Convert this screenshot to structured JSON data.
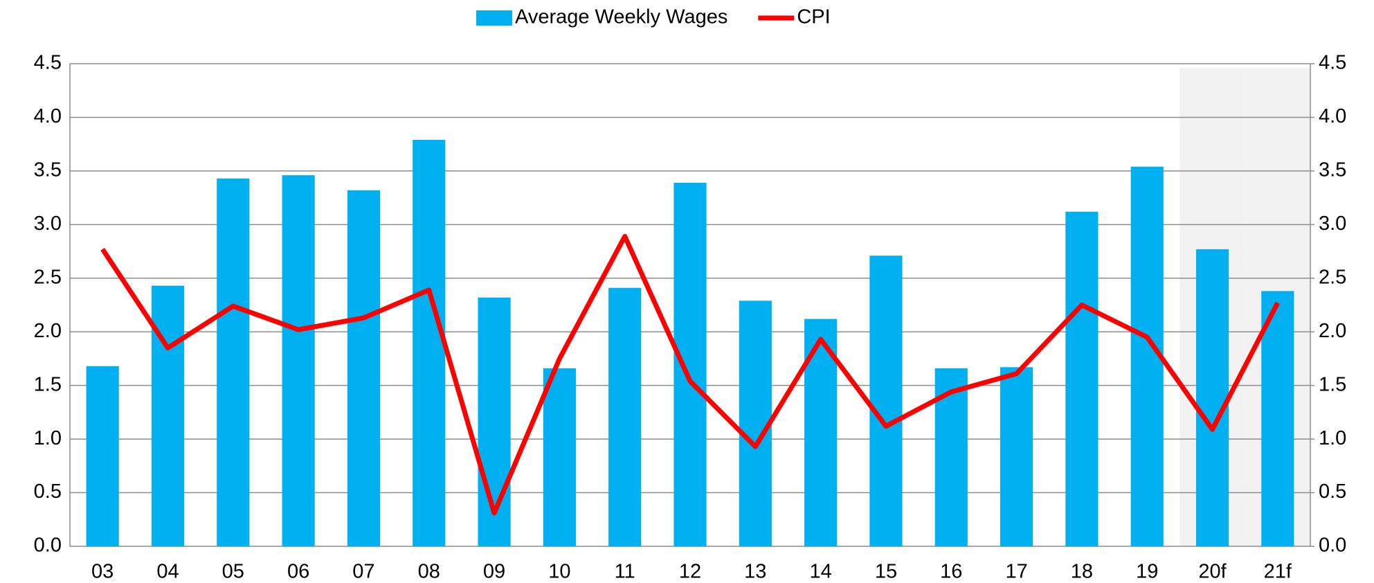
{
  "chart_data": {
    "type": "bar_line",
    "categories": [
      "03",
      "04",
      "05",
      "06",
      "07",
      "08",
      "09",
      "10",
      "11",
      "12",
      "13",
      "14",
      "15",
      "16",
      "17",
      "18",
      "19",
      "20f",
      "21f"
    ],
    "series": [
      {
        "name": "Average Weekly Wages",
        "type": "bar",
        "color": "#00b0f0",
        "values": [
          1.68,
          2.43,
          3.43,
          3.46,
          3.32,
          3.79,
          2.32,
          1.66,
          2.41,
          3.39,
          2.29,
          2.12,
          2.71,
          1.66,
          1.67,
          3.12,
          3.54,
          2.77,
          2.38
        ]
      },
      {
        "name": "CPI",
        "type": "line",
        "axis": "y2",
        "color": "#ff0000",
        "values": [
          2.77,
          1.85,
          2.24,
          2.02,
          2.13,
          2.39,
          0.31,
          1.75,
          2.89,
          1.54,
          0.93,
          1.93,
          1.12,
          1.44,
          1.61,
          2.25,
          1.95,
          1.09,
          2.27
        ]
      }
    ],
    "ylim": [
      0,
      4.5
    ],
    "yticks": [
      {
        "value": 0,
        "label": "0.0"
      },
      {
        "value": 0.5,
        "label": "0.5"
      },
      {
        "value": 1,
        "label": "1.0"
      },
      {
        "value": 1.5,
        "label": "1.5"
      },
      {
        "value": 2,
        "label": "2.0"
      },
      {
        "value": 2.5,
        "label": "2.5"
      },
      {
        "value": 3,
        "label": "3.0"
      },
      {
        "value": 3.5,
        "label": "3.5"
      },
      {
        "value": 4,
        "label": "4.0"
      },
      {
        "value": 4.5,
        "label": "4.5"
      }
    ],
    "y2lim": [
      0,
      4.5
    ],
    "y2ticks": [
      {
        "value": 0,
        "label": "0.0"
      },
      {
        "value": 0.5,
        "label": "0.5"
      },
      {
        "value": 1,
        "label": "1.0"
      },
      {
        "value": 1.5,
        "label": "1.5"
      },
      {
        "value": 2,
        "label": "2.0"
      },
      {
        "value": 2.5,
        "label": "2.5"
      },
      {
        "value": 3,
        "label": "3.0"
      },
      {
        "value": 3.5,
        "label": "3.5"
      },
      {
        "value": 4,
        "label": "4.0"
      },
      {
        "value": 4.5,
        "label": "4.5"
      }
    ],
    "grid": true,
    "legend": "top"
  }
}
